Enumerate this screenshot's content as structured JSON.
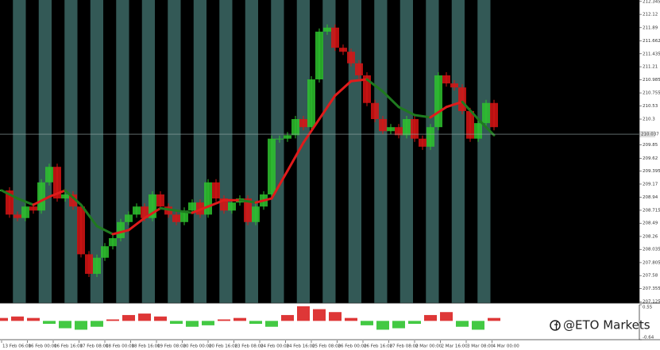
{
  "chart_data": [
    {
      "type": "price",
      "up_color": "#2ec22e",
      "down_color": "#d81414",
      "ma_up_color": "#e01b1b",
      "ma_down_color": "#1f7a1f",
      "stripe_colors": [
        "#000000",
        "#335956"
      ],
      "xlim": [
        0,
        62
      ],
      "ylim": [
        207.1,
        212.37
      ],
      "yticks": [
        212.345,
        212.12,
        211.89,
        211.662,
        211.435,
        211.21,
        210.985,
        210.755,
        210.53,
        210.3,
        209.85,
        209.62,
        209.395,
        209.17,
        208.94,
        208.715,
        208.49,
        208.26,
        208.035,
        207.805,
        207.58,
        207.355,
        207.125
      ],
      "current_price": 210.037,
      "xticks": [
        {
          "value": 0,
          "label": "13 Feb 06:00"
        },
        {
          "value": 3.25,
          "label": "16 Feb 00:00"
        },
        {
          "value": 6.5,
          "label": "16 Feb 16:00"
        },
        {
          "value": 9.75,
          "label": "17 Feb 08:00"
        },
        {
          "value": 13,
          "label": "18 Feb 00:00"
        },
        {
          "value": 16.25,
          "label": "18 Feb 16:00"
        },
        {
          "value": 19.5,
          "label": "19 Feb 08:00"
        },
        {
          "value": 22.75,
          "label": "20 Feb 00:00"
        },
        {
          "value": 26,
          "label": "20 Feb 16:00"
        },
        {
          "value": 29.25,
          "label": "23 Feb 08:00"
        },
        {
          "value": 32.5,
          "label": "24 Feb 00:00"
        },
        {
          "value": 35.75,
          "label": "24 Feb 16:00"
        },
        {
          "value": 39,
          "label": "25 Feb 08:00"
        },
        {
          "value": 42.25,
          "label": "26 Feb 00:00"
        },
        {
          "value": 45.5,
          "label": "26 Feb 16:00"
        },
        {
          "value": 48.75,
          "label": "27 Feb 08:00"
        },
        {
          "value": 52,
          "label": "2 Mar 00:00"
        },
        {
          "value": 55.25,
          "label": "2 Mar 16:00"
        },
        {
          "value": 58.5,
          "label": "3 Mar 08:00"
        },
        {
          "value": 61.75,
          "label": "4 Mar 00:00"
        }
      ],
      "values": [
        209.06,
        208.64,
        208.58,
        208.78,
        208.71,
        209.2,
        209.47,
        208.92,
        208.99,
        208.78,
        207.95,
        207.61,
        207.89,
        208.09,
        208.23,
        208.51,
        208.64,
        208.78,
        208.58,
        208.99,
        208.78,
        208.64,
        208.51,
        208.71,
        208.85,
        208.64,
        209.2,
        208.92,
        208.71,
        208.85,
        208.92,
        208.51,
        208.78,
        208.99,
        209.96,
        209.96,
        210.02,
        210.3,
        210.16,
        210.99,
        211.82,
        211.89,
        211.54,
        211.47,
        211.27,
        211.06,
        210.58,
        210.3,
        210.09,
        210.16,
        210.02,
        210.3,
        209.96,
        209.82,
        210.16,
        211.06,
        210.92,
        210.85,
        210.44,
        209.96,
        210.23,
        210.58,
        210.16
      ],
      "ma_x": [
        0,
        2,
        4,
        6,
        8,
        10,
        12,
        14,
        16,
        18,
        20,
        22,
        24,
        26,
        28,
        30,
        32,
        34,
        36,
        38,
        40,
        42,
        44,
        46,
        48,
        50,
        52,
        54,
        56,
        58,
        60,
        62
      ],
      "ma_values": [
        209.06,
        208.92,
        208.81,
        208.95,
        209.06,
        208.81,
        208.44,
        208.3,
        208.37,
        208.58,
        208.75,
        208.71,
        208.67,
        208.78,
        208.89,
        208.89,
        208.85,
        208.92,
        209.4,
        209.89,
        210.3,
        210.71,
        210.96,
        210.99,
        210.78,
        210.51,
        210.37,
        210.33,
        210.51,
        210.6,
        210.3,
        210.02
      ]
    },
    {
      "type": "bar",
      "up_color": "#d81414",
      "down_color": "#22c022",
      "xlim": [
        0,
        62
      ],
      "ylim": [
        -0.64,
        0.55
      ],
      "yticks": [
        0.55,
        -0.64
      ],
      "x": [
        0,
        2,
        4,
        6,
        8,
        10,
        12,
        14,
        16,
        18,
        20,
        22,
        24,
        26,
        28,
        30,
        32,
        34,
        36,
        38,
        40,
        42,
        44,
        46,
        48,
        50,
        52,
        54,
        56,
        58,
        60,
        62
      ],
      "values": [
        0.1,
        0.15,
        0.1,
        -0.1,
        -0.25,
        -0.3,
        -0.2,
        0.05,
        0.2,
        0.25,
        0.15,
        -0.1,
        -0.2,
        -0.15,
        0.05,
        0.1,
        -0.1,
        -0.2,
        0.2,
        0.5,
        0.4,
        0.3,
        0.1,
        -0.15,
        -0.3,
        -0.25,
        -0.1,
        0.2,
        0.3,
        -0.2,
        -0.3,
        0.1
      ]
    }
  ],
  "watermark": "@ETO Markets"
}
